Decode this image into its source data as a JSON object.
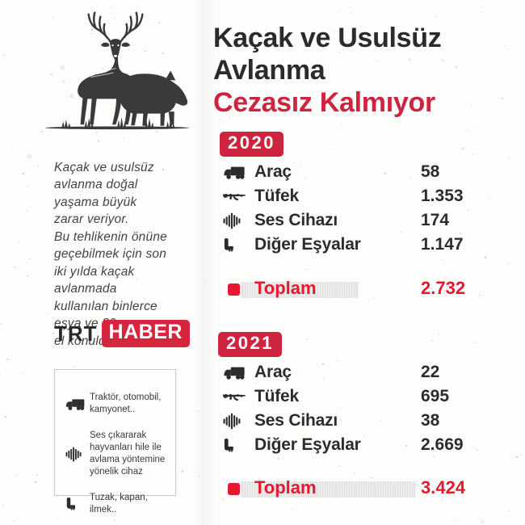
{
  "colors": {
    "accent_red": "#cd2440",
    "bright_red": "#e6182f",
    "ink": "#2b2b2e",
    "text_gray": "#434346"
  },
  "title": {
    "line1": "Kaçak ve Usulsüz",
    "line2": "Avlanma",
    "line3": "Cezasız Kalmıyor"
  },
  "intro": "Kaçak ve usulsüz\navlanma doğal\nyaşama büyük\nzarar veriyor.\nBu tehlikenin önüne\ngeçebilmek için son\niki yılda kaçak\navlanmada\nkullanılan binlerce\neşya ve 80 araca\nel konuldu.",
  "logo": {
    "trt": "TRT",
    "haber": "HABER"
  },
  "legend": {
    "items": [
      {
        "icon": "truck-icon",
        "text": "Traktör, otomobil, kamyonet.."
      },
      {
        "icon": "sound-device-icon",
        "text": "Ses çıkararak hayvanları hile ile avlama yöntemine yönelik cihaz"
      },
      {
        "icon": "trap-icon",
        "text": "Tuzak, kapan, ilmek.."
      }
    ]
  },
  "sections": [
    {
      "year": "2020",
      "rows": [
        {
          "icon": "truck-icon",
          "label": "Araç",
          "value": "58"
        },
        {
          "icon": "rifle-icon",
          "label": "Tüfek",
          "value": "1.353"
        },
        {
          "icon": "sound-device-icon",
          "label": "Ses Cihazı",
          "value": "174"
        },
        {
          "icon": "trap-icon",
          "label": "Diğer Eşyalar",
          "value": "1.147"
        }
      ],
      "total_label": "Toplam",
      "total_value": "2.732"
    },
    {
      "year": "2021",
      "rows": [
        {
          "icon": "truck-icon",
          "label": "Araç",
          "value": "22"
        },
        {
          "icon": "rifle-icon",
          "label": "Tüfek",
          "value": "695"
        },
        {
          "icon": "sound-device-icon",
          "label": "Ses Cihazı",
          "value": "38"
        },
        {
          "icon": "trap-icon",
          "label": "Diğer Eşyalar",
          "value": "2.669"
        }
      ],
      "total_label": "Toplam",
      "total_value": "3.424"
    }
  ],
  "chart_data": {
    "type": "table",
    "title": "Kaçak ve Usulsüz Avlanma Cezasız Kalmıyor",
    "categories": [
      "Araç",
      "Tüfek",
      "Ses Cihazı",
      "Diğer Eşyalar"
    ],
    "series": [
      {
        "name": "2020",
        "values": [
          58,
          1353,
          174,
          1147
        ],
        "total": 2732
      },
      {
        "name": "2021",
        "values": [
          22,
          695,
          38,
          2669
        ],
        "total": 3424
      }
    ],
    "legend_notes": {
      "Araç": "Traktör, otomobil, kamyonet..",
      "Ses Cihazı": "Ses çıkararak hayvanları hile ile avlama yöntemine yönelik cihaz",
      "Diğer Eşyalar": "Tuzak, kapan, ilmek.."
    }
  }
}
